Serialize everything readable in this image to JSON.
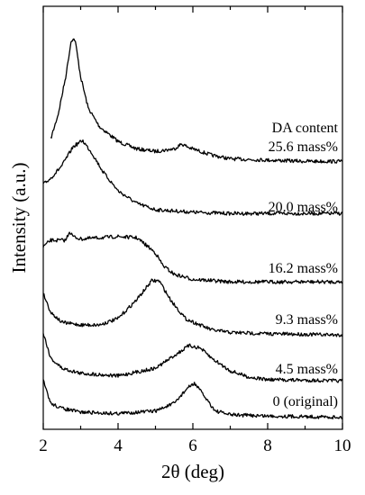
{
  "chart_data": {
    "type": "line",
    "xlabel": "2θ (deg)",
    "ylabel": "Intensity (a.u.)",
    "xlim": [
      2,
      10
    ],
    "x_ticks": [
      "2",
      "4",
      "6",
      "8",
      "10"
    ],
    "y_ticks_labeled": false,
    "grid": false,
    "annotation": "DA content",
    "series": [
      {
        "name": "25.6 mass%",
        "points": [
          [
            2.2,
            0.2
          ],
          [
            2.4,
            0.4
          ],
          [
            2.6,
            0.7
          ],
          [
            2.75,
            1.0
          ],
          [
            2.85,
            1.0
          ],
          [
            3.0,
            0.7
          ],
          [
            3.2,
            0.45
          ],
          [
            3.5,
            0.3
          ],
          [
            4.0,
            0.18
          ],
          [
            4.5,
            0.12
          ],
          [
            5.0,
            0.1
          ],
          [
            5.5,
            0.12
          ],
          [
            5.7,
            0.16
          ],
          [
            5.9,
            0.13
          ],
          [
            6.5,
            0.07
          ],
          [
            7.0,
            0.04
          ],
          [
            8.0,
            0.03
          ],
          [
            9.0,
            0.02
          ],
          [
            10.0,
            0.02
          ]
        ]
      },
      {
        "name": "20.0 mass%",
        "points": [
          [
            2.0,
            0.25
          ],
          [
            2.2,
            0.3
          ],
          [
            2.5,
            0.4
          ],
          [
            2.8,
            0.55
          ],
          [
            3.05,
            0.6
          ],
          [
            3.3,
            0.5
          ],
          [
            3.6,
            0.35
          ],
          [
            4.0,
            0.2
          ],
          [
            4.5,
            0.1
          ],
          [
            5.0,
            0.05
          ],
          [
            6.0,
            0.03
          ],
          [
            7.0,
            0.02
          ],
          [
            8.0,
            0.02
          ],
          [
            10.0,
            0.02
          ]
        ]
      },
      {
        "name": "16.2 mass%",
        "points": [
          [
            2.0,
            0.3
          ],
          [
            2.2,
            0.35
          ],
          [
            2.6,
            0.35
          ],
          [
            2.7,
            0.42
          ],
          [
            2.8,
            0.38
          ],
          [
            3.0,
            0.36
          ],
          [
            3.5,
            0.37
          ],
          [
            4.0,
            0.38
          ],
          [
            4.5,
            0.37
          ],
          [
            4.8,
            0.3
          ],
          [
            5.0,
            0.25
          ],
          [
            5.2,
            0.15
          ],
          [
            5.5,
            0.08
          ],
          [
            6.0,
            0.04
          ],
          [
            7.0,
            0.02
          ],
          [
            8.0,
            0.02
          ],
          [
            10.0,
            0.02
          ]
        ]
      },
      {
        "name": "9.3 mass%",
        "points": [
          [
            2.0,
            0.35
          ],
          [
            2.2,
            0.2
          ],
          [
            2.5,
            0.12
          ],
          [
            3.0,
            0.1
          ],
          [
            3.5,
            0.1
          ],
          [
            4.0,
            0.15
          ],
          [
            4.5,
            0.3
          ],
          [
            4.9,
            0.45
          ],
          [
            5.1,
            0.45
          ],
          [
            5.4,
            0.3
          ],
          [
            5.8,
            0.15
          ],
          [
            6.5,
            0.06
          ],
          [
            7.0,
            0.04
          ],
          [
            8.0,
            0.03
          ],
          [
            10.0,
            0.02
          ]
        ]
      },
      {
        "name": "4.5 mass%",
        "points": [
          [
            2.0,
            0.4
          ],
          [
            2.2,
            0.2
          ],
          [
            2.5,
            0.12
          ],
          [
            3.0,
            0.08
          ],
          [
            4.0,
            0.06
          ],
          [
            5.0,
            0.12
          ],
          [
            5.5,
            0.22
          ],
          [
            5.9,
            0.3
          ],
          [
            6.2,
            0.28
          ],
          [
            6.5,
            0.2
          ],
          [
            7.0,
            0.1
          ],
          [
            7.5,
            0.05
          ],
          [
            8.0,
            0.03
          ],
          [
            10.0,
            0.02
          ]
        ]
      },
      {
        "name": "0 (original)",
        "points": [
          [
            2.0,
            0.3
          ],
          [
            2.2,
            0.12
          ],
          [
            2.5,
            0.08
          ],
          [
            3.0,
            0.05
          ],
          [
            4.0,
            0.04
          ],
          [
            5.0,
            0.06
          ],
          [
            5.5,
            0.12
          ],
          [
            5.85,
            0.24
          ],
          [
            6.05,
            0.28
          ],
          [
            6.3,
            0.18
          ],
          [
            6.6,
            0.06
          ],
          [
            7.0,
            0.03
          ],
          [
            8.0,
            0.02
          ],
          [
            10.0,
            0.01
          ]
        ]
      }
    ]
  }
}
